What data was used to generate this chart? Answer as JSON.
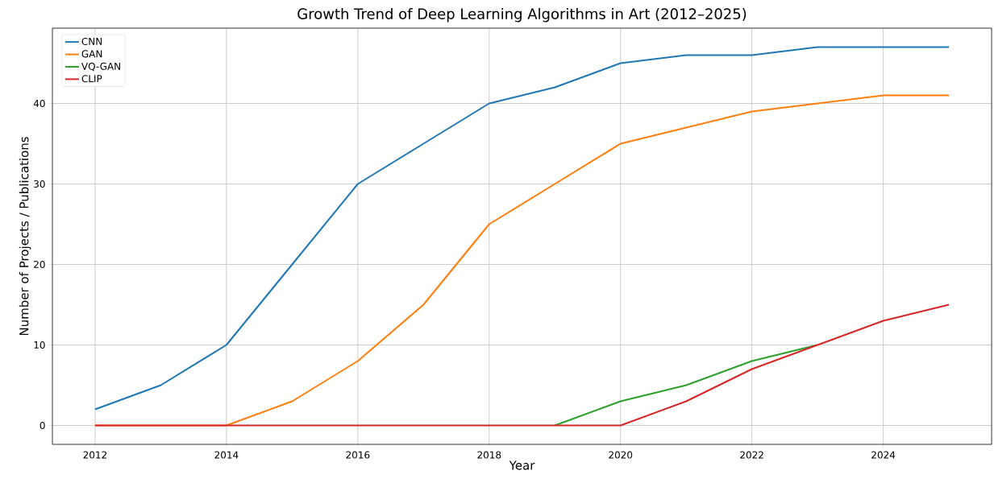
{
  "chart_data": {
    "type": "line",
    "title": "Growth Trend of Deep Learning Algorithms in Art (2012–2025)",
    "xlabel": "Year",
    "ylabel": "Number of Projects / Publications",
    "x": [
      2012,
      2013,
      2014,
      2015,
      2016,
      2017,
      2018,
      2019,
      2020,
      2021,
      2022,
      2023,
      2024,
      2025
    ],
    "series": [
      {
        "name": "CNN",
        "color": "#1f77b4",
        "values": [
          2,
          5,
          10,
          20,
          30,
          35,
          40,
          42,
          45,
          46,
          46,
          47,
          47,
          47
        ]
      },
      {
        "name": "GAN",
        "color": "#ff7f0e",
        "values": [
          0,
          0,
          0,
          3,
          8,
          15,
          25,
          30,
          35,
          37,
          39,
          40,
          41,
          41
        ]
      },
      {
        "name": "VQ-GAN",
        "color": "#2ca02c",
        "values": [
          null,
          null,
          null,
          null,
          null,
          null,
          null,
          0,
          3,
          5,
          8,
          10,
          null,
          null
        ]
      },
      {
        "name": "CLIP",
        "color": "#d62728",
        "values": [
          0,
          0,
          0,
          0,
          0,
          0,
          0,
          0,
          0,
          3,
          7,
          10,
          13,
          15
        ]
      }
    ],
    "xlim": [
      2011.35,
      2025.65
    ],
    "ylim": [
      -2.35,
      49.35
    ],
    "xticks": [
      2012,
      2014,
      2016,
      2018,
      2020,
      2022,
      2024
    ],
    "yticks": [
      0,
      10,
      20,
      30,
      40
    ],
    "grid": true,
    "legend": "top left",
    "marker": "none",
    "line_style": "solid"
  }
}
